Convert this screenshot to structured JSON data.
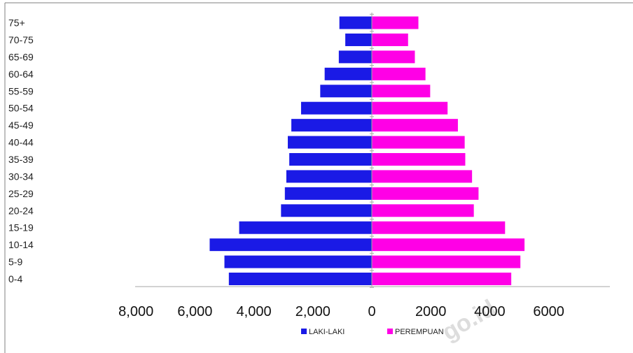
{
  "chart_data": {
    "type": "bar",
    "orientation": "horizontal",
    "subtype": "population-pyramid",
    "categories": [
      "0-4",
      "5-9",
      "10-14",
      "15-19",
      "20-24",
      "25-29",
      "30-34",
      "35-39",
      "40-44",
      "45-49",
      "50-54",
      "55-59",
      "60-64",
      "65-69",
      "70-75",
      "75+"
    ],
    "series": [
      {
        "name": "LAKI-LAKI",
        "side": "left",
        "color": "#1a1ae6",
        "values": [
          4850,
          5000,
          5500,
          4500,
          3080,
          2950,
          2900,
          2800,
          2850,
          2730,
          2400,
          1750,
          1600,
          1120,
          900,
          1100
        ]
      },
      {
        "name": "PEREMPUAN",
        "side": "right",
        "color": "#ff00e6",
        "values": [
          4730,
          5040,
          5180,
          4520,
          3460,
          3620,
          3400,
          3170,
          3150,
          2920,
          2570,
          1980,
          1820,
          1460,
          1230,
          1580
        ]
      }
    ],
    "xlim": [
      -8000,
      6000
    ],
    "x_tick_values": [
      -8000,
      -6000,
      -4000,
      -2000,
      0,
      2000,
      4000,
      6000
    ],
    "x_tick_labels": [
      "8,000",
      "6,000",
      "4,000",
      "2,000",
      "0",
      "2000",
      "4000",
      "6000"
    ],
    "legend_position": "bottom",
    "legend": [
      "LAKI-LAKI",
      "PEREMPUAN"
    ],
    "grid": false,
    "axis_color": "#a6a6a6",
    "frame_color": "#7f7f7f",
    "watermark": "go.id"
  }
}
